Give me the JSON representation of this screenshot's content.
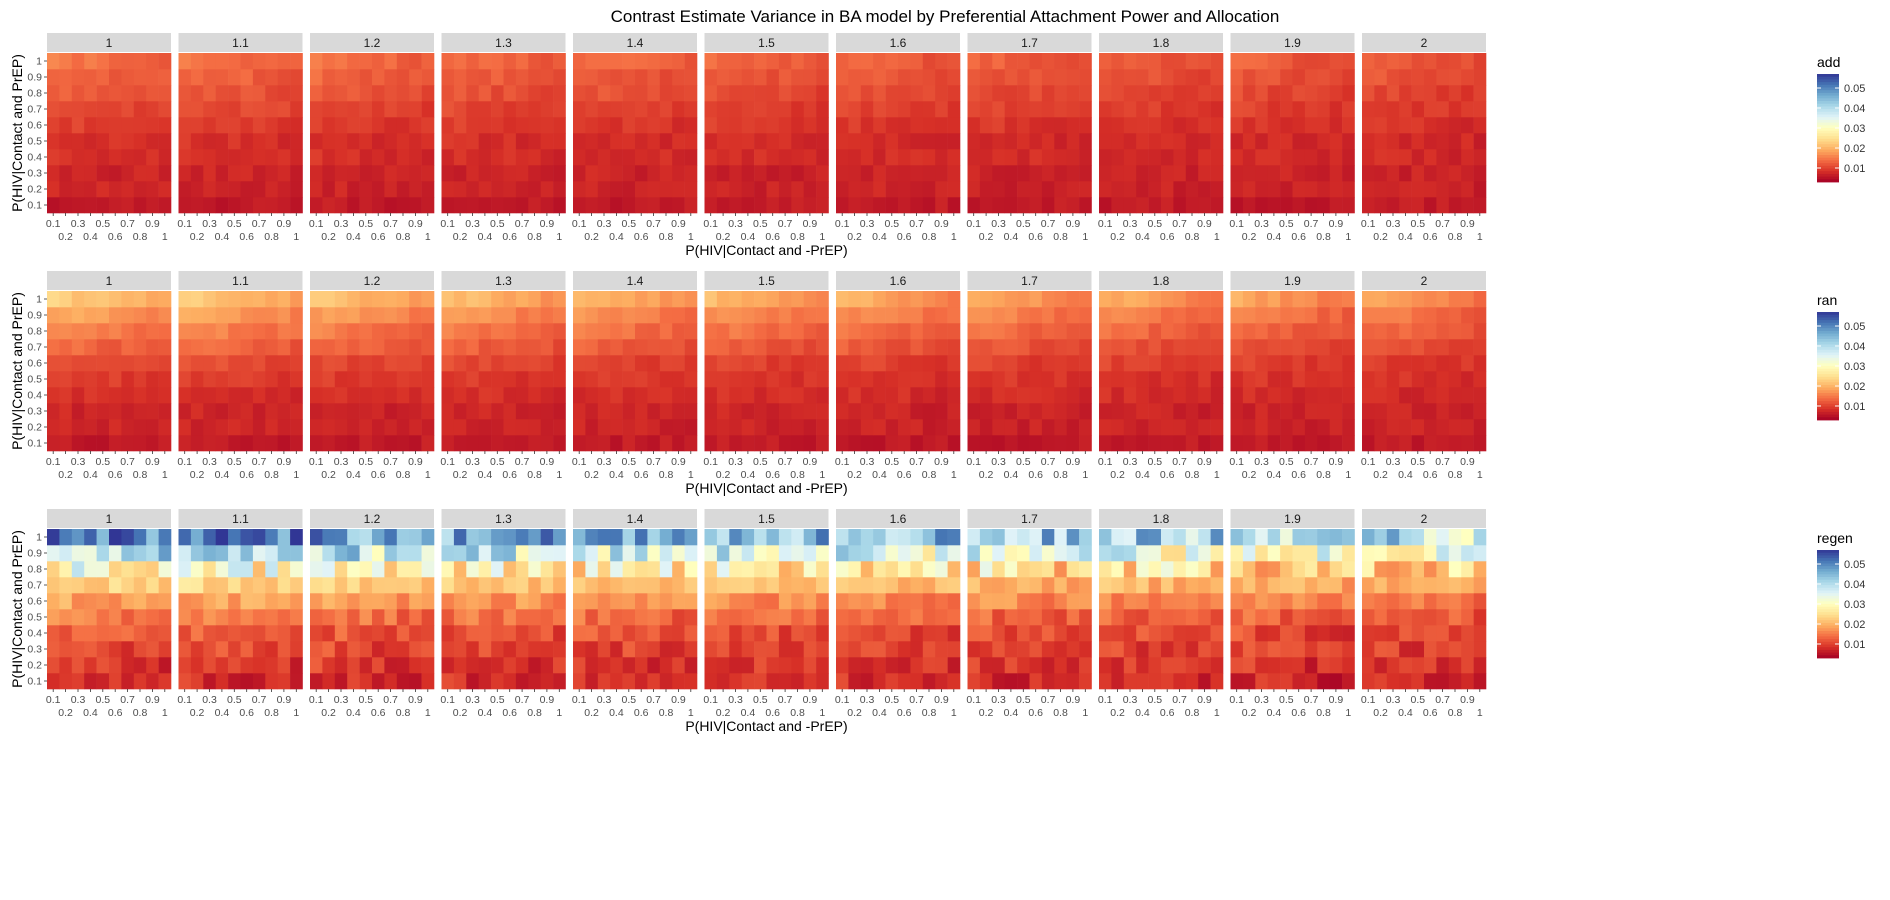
{
  "chart_data": {
    "type": "heatmap",
    "title": "Contrast Estimate Variance in BA model by Preferential Attachment Power and Allocation",
    "xlabel": "P(HIV|Contact and -PrEP)",
    "ylabel": "P(HIV|Contact and PrEP)",
    "x_ticks_top": [
      "0.1",
      "0.3",
      "0.5",
      "0.7",
      "0.9"
    ],
    "x_ticks_bottom": [
      "0.2",
      "0.4",
      "0.6",
      "0.8",
      "1"
    ],
    "x_values": [
      0.1,
      0.2,
      0.3,
      0.4,
      0.5,
      0.6,
      0.7,
      0.8,
      0.9,
      1.0
    ],
    "y_values": [
      0.1,
      0.2,
      0.3,
      0.4,
      0.5,
      0.6,
      0.7,
      0.8,
      0.9,
      1.0
    ],
    "y_ticks": [
      "1",
      "0.9",
      "0.8",
      "0.7",
      "0.6",
      "0.5",
      "0.4",
      "0.3",
      "0.2",
      "0.1"
    ],
    "facets": [
      "1",
      "1.1",
      "1.2",
      "1.3",
      "1.4",
      "1.5",
      "1.6",
      "1.7",
      "1.8",
      "1.9",
      "2"
    ],
    "color_scale": {
      "low": 0.003,
      "high": 0.057,
      "palette": [
        "#a50026",
        "#d73027",
        "#f46d43",
        "#fdae61",
        "#fee090",
        "#ffffbf",
        "#e0f3f8",
        "#abd9e9",
        "#74add1",
        "#4575b4",
        "#313695"
      ],
      "legend_ticks": [
        "0.05",
        "0.04",
        "0.03",
        "0.02",
        "0.01"
      ],
      "legend_values": [
        0.05,
        0.04,
        0.03,
        0.02,
        0.01
      ]
    },
    "rows": [
      {
        "legend_title": "add",
        "approx_cell_values": {
          "y=0.1": 0.006,
          "y=0.2": 0.007,
          "y=0.3": 0.007,
          "y=0.4": 0.008,
          "y=0.5": 0.008,
          "y=0.6": 0.009,
          "y=0.7": 0.01,
          "y=0.8": 0.011,
          "y=0.9": 0.012,
          "y=1": 0.013
        }
      },
      {
        "legend_title": "ran",
        "approx_cell_values": {
          "y=0.1": 0.006,
          "y=0.2": 0.007,
          "y=0.3": 0.007,
          "y=0.4": 0.008,
          "y=0.5": 0.009,
          "y=0.6": 0.01,
          "y=0.7": 0.012,
          "y=0.8": 0.014,
          "y=0.9": 0.016,
          "y=1": 0.019
        }
      },
      {
        "legend_title": "regen",
        "approx_cell_values": {
          "y=0.1": 0.008,
          "y=0.2": 0.009,
          "y=0.3": 0.01,
          "y=0.4": 0.011,
          "y=0.5": 0.013,
          "y=0.6": 0.016,
          "y=0.7": 0.02,
          "y=0.8": 0.025,
          "y=0.9": 0.033,
          "y=1": 0.041
        }
      }
    ]
  }
}
